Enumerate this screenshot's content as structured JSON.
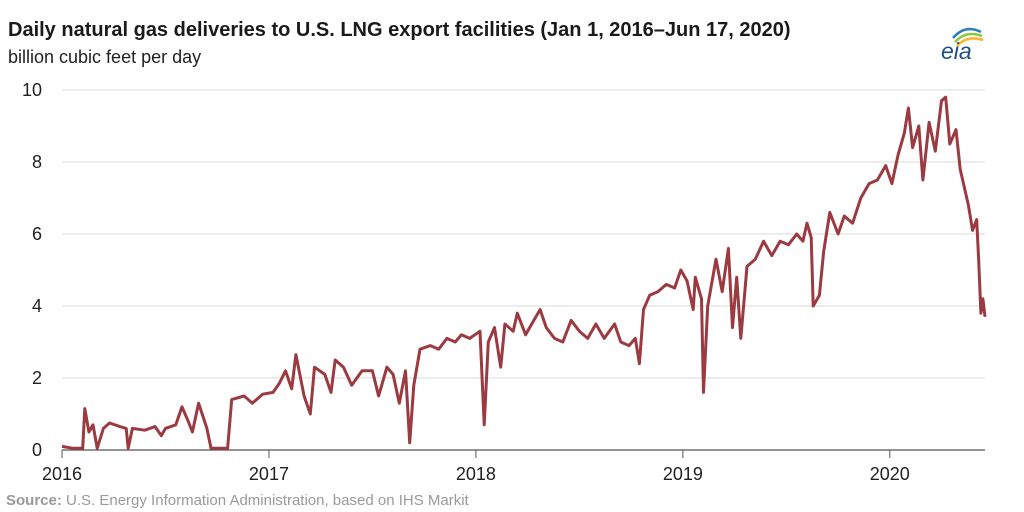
{
  "title": "Daily natural gas deliveries to U.S. LNG export facilities (Jan 1, 2016–Jun 17, 2020)",
  "subtitle": "billion cubic feet per day",
  "source_label": "Source:",
  "source_text": " U.S. Energy Information Administration, based on IHS Markit",
  "logo_text": "eia",
  "colors": {
    "line": "#9b3a40",
    "grid": "#d9d9d9",
    "axis": "#555555"
  },
  "chart_data": {
    "type": "line",
    "title": "Daily natural gas deliveries to U.S. LNG export facilities (Jan 1, 2016–Jun 17, 2020)",
    "ylabel": "billion cubic feet per day",
    "xlim": [
      2016.0,
      2020.46
    ],
    "ylim": [
      0,
      10
    ],
    "yticks": [
      0,
      2,
      4,
      6,
      8,
      10
    ],
    "xticks": [
      2016,
      2017,
      2018,
      2019,
      2020
    ],
    "grid": "horizontal",
    "series": [
      {
        "values": [
          [
            2016.0,
            0.1
          ],
          [
            2016.05,
            0.05
          ],
          [
            2016.1,
            0.05
          ],
          [
            2016.11,
            1.15
          ],
          [
            2016.13,
            0.5
          ],
          [
            2016.15,
            0.7
          ],
          [
            2016.17,
            0.05
          ],
          [
            2016.2,
            0.6
          ],
          [
            2016.23,
            0.75
          ],
          [
            2016.28,
            0.65
          ],
          [
            2016.31,
            0.6
          ],
          [
            2016.32,
            0.05
          ],
          [
            2016.34,
            0.6
          ],
          [
            2016.4,
            0.55
          ],
          [
            2016.45,
            0.65
          ],
          [
            2016.48,
            0.4
          ],
          [
            2016.5,
            0.6
          ],
          [
            2016.55,
            0.7
          ],
          [
            2016.58,
            1.2
          ],
          [
            2016.61,
            0.8
          ],
          [
            2016.63,
            0.5
          ],
          [
            2016.66,
            1.3
          ],
          [
            2016.7,
            0.6
          ],
          [
            2016.72,
            0.05
          ],
          [
            2016.8,
            0.05
          ],
          [
            2016.82,
            1.4
          ],
          [
            2016.88,
            1.5
          ],
          [
            2016.92,
            1.3
          ],
          [
            2016.97,
            1.55
          ],
          [
            2017.02,
            1.6
          ],
          [
            2017.05,
            1.85
          ],
          [
            2017.08,
            2.2
          ],
          [
            2017.11,
            1.7
          ],
          [
            2017.13,
            2.65
          ],
          [
            2017.17,
            1.5
          ],
          [
            2017.2,
            1.0
          ],
          [
            2017.22,
            2.3
          ],
          [
            2017.27,
            2.1
          ],
          [
            2017.3,
            1.6
          ],
          [
            2017.32,
            2.5
          ],
          [
            2017.36,
            2.3
          ],
          [
            2017.4,
            1.8
          ],
          [
            2017.45,
            2.2
          ],
          [
            2017.5,
            2.2
          ],
          [
            2017.53,
            1.5
          ],
          [
            2017.57,
            2.3
          ],
          [
            2017.6,
            2.1
          ],
          [
            2017.63,
            1.3
          ],
          [
            2017.66,
            2.2
          ],
          [
            2017.68,
            0.2
          ],
          [
            2017.7,
            1.8
          ],
          [
            2017.73,
            2.8
          ],
          [
            2017.78,
            2.9
          ],
          [
            2017.82,
            2.8
          ],
          [
            2017.86,
            3.1
          ],
          [
            2017.9,
            3.0
          ],
          [
            2017.93,
            3.2
          ],
          [
            2017.97,
            3.1
          ],
          [
            2018.02,
            3.3
          ],
          [
            2018.04,
            0.7
          ],
          [
            2018.06,
            3.0
          ],
          [
            2018.09,
            3.4
          ],
          [
            2018.12,
            2.3
          ],
          [
            2018.14,
            3.5
          ],
          [
            2018.18,
            3.3
          ],
          [
            2018.2,
            3.8
          ],
          [
            2018.24,
            3.2
          ],
          [
            2018.28,
            3.6
          ],
          [
            2018.31,
            3.9
          ],
          [
            2018.34,
            3.4
          ],
          [
            2018.38,
            3.1
          ],
          [
            2018.42,
            3.0
          ],
          [
            2018.46,
            3.6
          ],
          [
            2018.5,
            3.3
          ],
          [
            2018.54,
            3.1
          ],
          [
            2018.58,
            3.5
          ],
          [
            2018.62,
            3.1
          ],
          [
            2018.67,
            3.5
          ],
          [
            2018.7,
            3.0
          ],
          [
            2018.74,
            2.9
          ],
          [
            2018.77,
            3.1
          ],
          [
            2018.79,
            2.4
          ],
          [
            2018.81,
            3.9
          ],
          [
            2018.84,
            4.3
          ],
          [
            2018.88,
            4.4
          ],
          [
            2018.92,
            4.6
          ],
          [
            2018.96,
            4.5
          ],
          [
            2018.99,
            5.0
          ],
          [
            2019.02,
            4.7
          ],
          [
            2019.05,
            3.9
          ],
          [
            2019.06,
            4.8
          ],
          [
            2019.09,
            4.2
          ],
          [
            2019.1,
            1.6
          ],
          [
            2019.12,
            4.0
          ],
          [
            2019.16,
            5.3
          ],
          [
            2019.19,
            4.4
          ],
          [
            2019.22,
            5.6
          ],
          [
            2019.24,
            3.4
          ],
          [
            2019.26,
            4.8
          ],
          [
            2019.28,
            3.1
          ],
          [
            2019.31,
            5.1
          ],
          [
            2019.35,
            5.3
          ],
          [
            2019.39,
            5.8
          ],
          [
            2019.43,
            5.4
          ],
          [
            2019.47,
            5.8
          ],
          [
            2019.51,
            5.7
          ],
          [
            2019.55,
            6.0
          ],
          [
            2019.58,
            5.8
          ],
          [
            2019.6,
            6.3
          ],
          [
            2019.62,
            5.9
          ],
          [
            2019.63,
            4.0
          ],
          [
            2019.66,
            4.3
          ],
          [
            2019.68,
            5.5
          ],
          [
            2019.71,
            6.6
          ],
          [
            2019.75,
            6.0
          ],
          [
            2019.78,
            6.5
          ],
          [
            2019.82,
            6.3
          ],
          [
            2019.86,
            7.0
          ],
          [
            2019.9,
            7.4
          ],
          [
            2019.94,
            7.5
          ],
          [
            2019.98,
            7.9
          ],
          [
            2020.01,
            7.4
          ],
          [
            2020.04,
            8.2
          ],
          [
            2020.07,
            8.8
          ],
          [
            2020.09,
            9.5
          ],
          [
            2020.11,
            8.4
          ],
          [
            2020.14,
            9.0
          ],
          [
            2020.16,
            7.5
          ],
          [
            2020.19,
            9.1
          ],
          [
            2020.22,
            8.3
          ],
          [
            2020.25,
            9.7
          ],
          [
            2020.27,
            9.8
          ],
          [
            2020.29,
            8.5
          ],
          [
            2020.32,
            8.9
          ],
          [
            2020.34,
            7.8
          ],
          [
            2020.36,
            7.3
          ],
          [
            2020.38,
            6.8
          ],
          [
            2020.4,
            6.1
          ],
          [
            2020.42,
            6.4
          ],
          [
            2020.43,
            5.2
          ],
          [
            2020.44,
            3.8
          ],
          [
            2020.45,
            4.2
          ],
          [
            2020.46,
            3.7
          ]
        ]
      }
    ]
  }
}
